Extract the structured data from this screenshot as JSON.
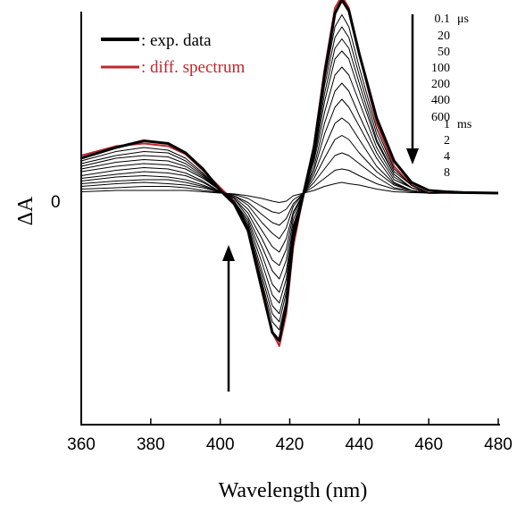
{
  "chart_data": {
    "type": "line",
    "xlabel": "Wavelength (nm)",
    "ylabel": "ΔA",
    "xlim": [
      360,
      480
    ],
    "x_ticks": [
      "360",
      "380",
      "400",
      "420",
      "440",
      "460",
      "480"
    ],
    "y_ticks": [
      "0"
    ],
    "grid": false,
    "legend_placement": "top-left",
    "legend": [
      {
        "name": ": exp. data",
        "color": "#000000"
      },
      {
        "name": ": diff. spectrum",
        "color": "#c0262d"
      }
    ],
    "time_labels": [
      "0.1",
      "μs",
      "20",
      "50",
      "100",
      "200",
      "400",
      "600",
      "1",
      "ms",
      "2",
      "4",
      "8"
    ],
    "annotations": [
      {
        "type": "arrow",
        "direction": "down",
        "near": "time labels"
      },
      {
        "type": "arrow",
        "direction": "up",
        "near": "negative band"
      }
    ],
    "x": [
      360,
      370,
      378,
      385,
      390,
      395,
      400,
      404,
      408,
      412,
      415,
      417,
      419,
      421,
      424,
      427,
      430,
      433,
      435,
      437,
      440,
      445,
      450,
      455,
      460,
      465,
      470,
      480
    ],
    "series": [
      {
        "name": ": diff. spectrum",
        "color": "#c0262d",
        "width": 2,
        "values": [
          14,
          17.5,
          18.5,
          17.5,
          14.5,
          8.5,
          2,
          -3,
          -13,
          -34,
          -52,
          -57,
          -45,
          -20,
          0,
          18,
          46,
          69,
          73.5,
          69,
          52,
          26,
          10,
          3,
          0,
          0,
          0,
          0
        ]
      },
      {
        "name": ": exp. data",
        "color": "#000000",
        "width": 3,
        "values": [
          13,
          17,
          19.5,
          18.5,
          15,
          9,
          1,
          -4,
          -14,
          -36,
          -52,
          -55,
          -42,
          -17,
          0,
          17,
          44,
          67,
          72,
          68,
          52,
          28,
          12,
          4,
          1,
          0.5,
          0.2,
          0
        ]
      },
      {
        "name": "",
        "color": "#000000",
        "width": 1,
        "values": [
          12,
          15.5,
          17,
          16,
          13,
          7.5,
          1,
          -4,
          -14,
          -33,
          -48,
          -51,
          -40,
          -16,
          0,
          16,
          42,
          62,
          66.5,
          62,
          47,
          24,
          9,
          3,
          0,
          0.3,
          0,
          0.3
        ]
      },
      {
        "name": "",
        "color": "#000000",
        "width": 1,
        "values": [
          11,
          14,
          15.5,
          15,
          12,
          7,
          1,
          -3,
          -13,
          -31,
          -45,
          -48,
          -37,
          -15,
          0,
          15,
          40,
          58,
          62,
          58,
          44,
          22,
          8,
          3,
          0,
          0.3,
          0,
          0.3
        ]
      },
      {
        "name": "",
        "color": "#000000",
        "width": 1,
        "values": [
          10,
          13,
          14,
          13.5,
          11,
          6.5,
          1,
          -3,
          -12,
          -29,
          -42,
          -45,
          -35,
          -14,
          0,
          14,
          37,
          54,
          57.5,
          54,
          41,
          20,
          7,
          2,
          0,
          0.3,
          0,
          0.3
        ]
      },
      {
        "name": "",
        "color": "#000000",
        "width": 1,
        "values": [
          9,
          11.5,
          12.5,
          12,
          10,
          6,
          1,
          -3,
          -11,
          -26,
          -38,
          -41,
          -32,
          -13,
          0,
          13,
          34,
          50,
          53,
          50,
          38,
          19,
          7,
          2,
          0,
          0.3,
          0,
          0.3
        ]
      },
      {
        "name": "",
        "color": "#000000",
        "width": 1,
        "values": [
          8,
          10,
          11,
          10.5,
          9,
          5.5,
          1,
          -3,
          -10,
          -23,
          -34,
          -37,
          -29,
          -12,
          0,
          12,
          30,
          44,
          47,
          44,
          34,
          17,
          6,
          2,
          0,
          0.3,
          0,
          0.3
        ]
      },
      {
        "name": "",
        "color": "#000000",
        "width": 1,
        "values": [
          6.5,
          8.5,
          9.5,
          9,
          7.5,
          4.5,
          0.5,
          -2,
          -9,
          -20,
          -29,
          -32,
          -25,
          -10,
          0,
          10,
          26,
          38,
          41,
          38,
          29,
          15,
          5,
          2,
          0,
          0.3,
          0,
          0.3
        ]
      },
      {
        "name": "",
        "color": "#000000",
        "width": 1,
        "values": [
          5.5,
          7,
          8,
          7.5,
          6.5,
          4,
          0.5,
          -2,
          -7.5,
          -17,
          -25,
          -27,
          -21,
          -8,
          0,
          8.5,
          22,
          32,
          35,
          32,
          25,
          13,
          4,
          1,
          0,
          0.3,
          0,
          0.3
        ]
      },
      {
        "name": "",
        "color": "#000000",
        "width": 1,
        "values": [
          4.5,
          6,
          6.5,
          6,
          5,
          3,
          0.5,
          -1.5,
          -6,
          -14,
          -20,
          -22,
          -17,
          -7,
          0,
          7,
          17,
          26,
          28,
          26,
          20,
          10,
          3.5,
          1,
          0,
          0.3,
          0,
          0.3
        ]
      },
      {
        "name": "",
        "color": "#000000",
        "width": 1,
        "values": [
          3.5,
          4.5,
          5,
          5,
          4,
          2.5,
          0.5,
          -1,
          -4.5,
          -11,
          -15,
          -17,
          -13,
          -5,
          0,
          5.5,
          13,
          20,
          21.5,
          20,
          15,
          8,
          3,
          1,
          0,
          0.3,
          0,
          0.3
        ]
      },
      {
        "name": "",
        "color": "#000000",
        "width": 1,
        "values": [
          2.5,
          3.5,
          4,
          3.5,
          3,
          2,
          0.3,
          -1,
          -3.5,
          -8,
          -11,
          -12,
          -9.5,
          -4,
          0,
          4,
          9,
          14,
          15,
          14,
          11,
          6,
          2,
          1,
          0,
          0.3,
          0,
          0.3
        ]
      },
      {
        "name": "",
        "color": "#000000",
        "width": 1,
        "values": [
          1.5,
          2,
          2.5,
          2.5,
          2,
          1,
          0.2,
          -0.5,
          -2,
          -5,
          -7,
          -7.5,
          -6,
          -2.5,
          0,
          2.5,
          5.5,
          8.5,
          9,
          8.5,
          6.5,
          3.5,
          1.5,
          0.5,
          0,
          0.2,
          0,
          0.2
        ]
      },
      {
        "name": "",
        "color": "#000000",
        "width": 1,
        "values": [
          0.5,
          1,
          1,
          1,
          1,
          0.5,
          0,
          -0.3,
          -1,
          -2,
          -3,
          -3.5,
          -3,
          -1,
          0,
          1,
          2.5,
          3.5,
          4,
          3.5,
          3,
          1.5,
          0.5,
          0.2,
          0,
          0.2,
          0,
          0.2
        ]
      }
    ]
  }
}
